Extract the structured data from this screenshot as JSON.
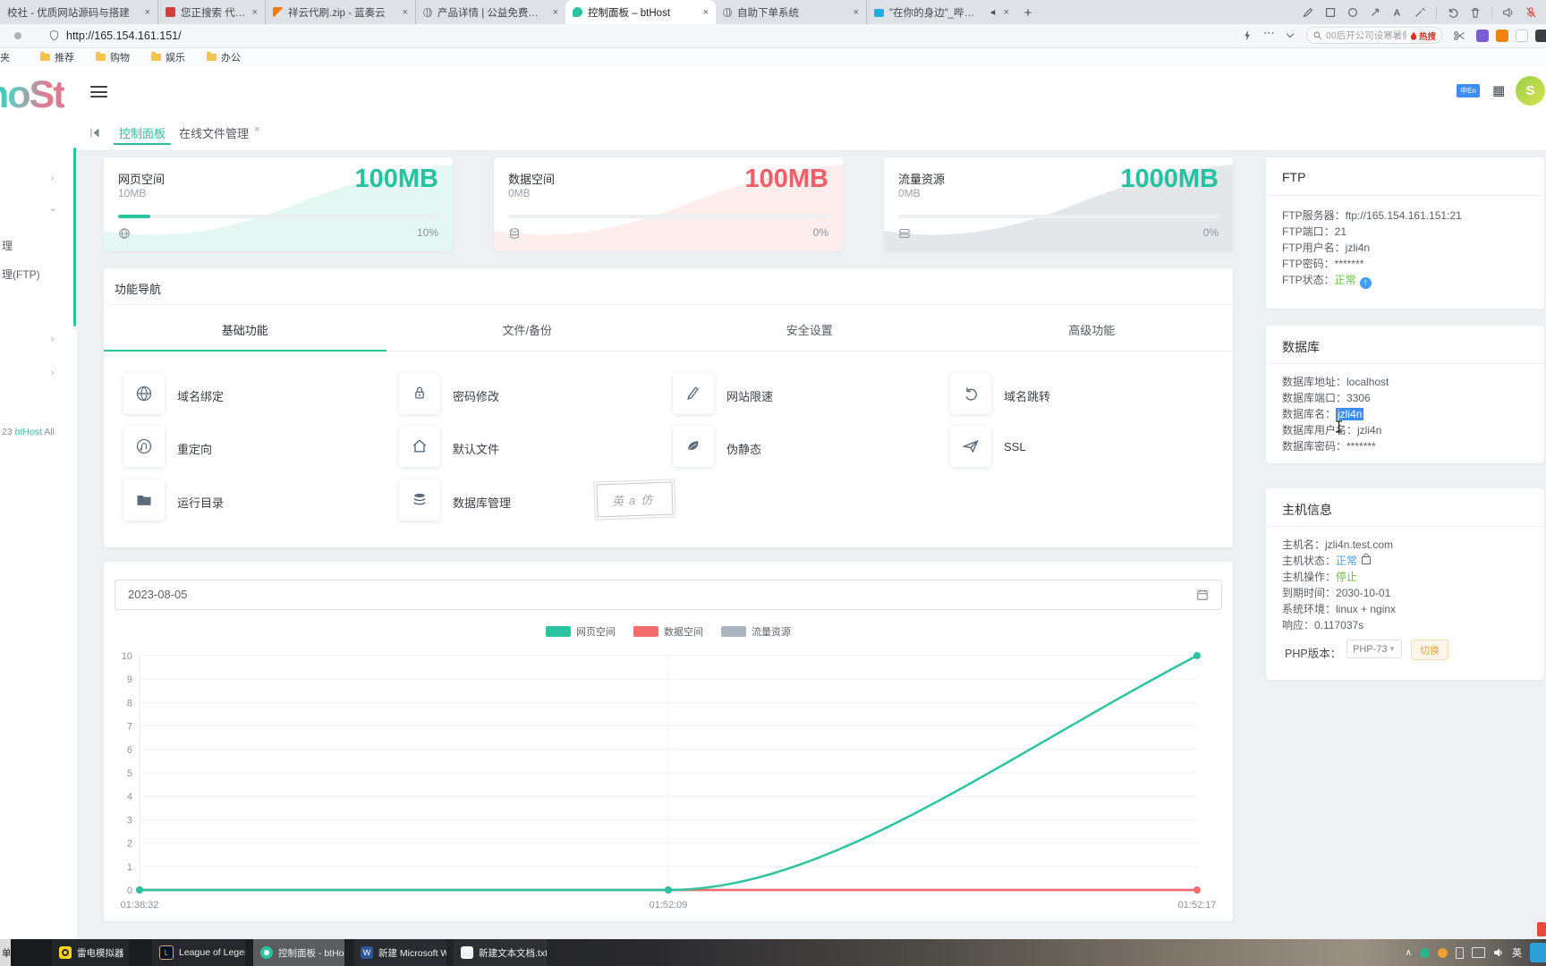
{
  "browser": {
    "tabs": [
      {
        "title": "校社 - 优质网站源码与搭建",
        "close": "×"
      },
      {
        "title": "您正搜索 代刷 - 蓝校社",
        "close": "×"
      },
      {
        "title": "祥云代刷.zip - 蓝奏云",
        "close": "×"
      },
      {
        "title": "产品详情 | 公益免费主机互联",
        "close": "×"
      },
      {
        "title": "控制面板 – btHost",
        "close": "×",
        "active": true
      },
      {
        "title": "自助下单系统",
        "close": "×"
      },
      {
        "title": "\"在你的身边\"_哔哩哔哩_bi",
        "close": "×",
        "audio": true
      }
    ],
    "new_tab": "+",
    "url": "http://165.154.161.151/",
    "search_text": "00后开公司设寒暑假",
    "hot_badge": "热搜",
    "bookmarks": [
      "夹",
      "推荐",
      "购物",
      "娱乐",
      "办公"
    ]
  },
  "sidebar": {
    "logo": "hoSt",
    "item_partial_1": "理",
    "item_partial_2": "理(FTP)",
    "footer_prefix": "23 ",
    "footer_brand": "btHost",
    "footer_suffix": " All"
  },
  "header": {
    "lang_badge": "中En",
    "avatar_initial": "S"
  },
  "page_tabs": {
    "tab1": "控制面板",
    "tab2": "在线文件管理",
    "close": "×"
  },
  "stat_cards": [
    {
      "title": "网页空间",
      "used": "10MB",
      "total": "100MB",
      "percent": "10%",
      "progress": 10,
      "accent": "#2bc3a0"
    },
    {
      "title": "数据空间",
      "used": "0MB",
      "total": "100MB",
      "percent": "0%",
      "progress": 0,
      "accent": "#f56c6c"
    },
    {
      "title": "流量资源",
      "used": "0MB",
      "total": "1000MB",
      "percent": "0%",
      "progress": 0,
      "accent": "#2bc3a0"
    }
  ],
  "function_nav": {
    "title": "功能导航",
    "tabs": [
      "基础功能",
      "文件/备份",
      "安全设置",
      "高级功能"
    ],
    "items": [
      "域名绑定",
      "密码修改",
      "网站限速",
      "域名跳转",
      "重定向",
      "默认文件",
      "伪静态",
      "SSL",
      "运行目录",
      "数据库管理"
    ],
    "watermark": "英a仿"
  },
  "ftp_panel": {
    "title": "FTP",
    "rows": [
      {
        "label": "FTP服务器：",
        "value": "ftp://165.154.161.151:21"
      },
      {
        "label": "FTP端口：",
        "value": "21"
      },
      {
        "label": "FTP用户名：",
        "value": "jzli4n"
      },
      {
        "label": "FTP密码：",
        "value": "*******"
      },
      {
        "label": "FTP状态：",
        "value": "正常"
      }
    ]
  },
  "db_panel": {
    "title": "数据库",
    "rows": [
      {
        "label": "数据库地址：",
        "value": "localhost"
      },
      {
        "label": "数据库端口：",
        "value": "3306"
      },
      {
        "label": "数据库名：",
        "value": "jzli4n"
      },
      {
        "label": "数据库用户名：",
        "value": "jzli4n"
      },
      {
        "label": "数据库密码：",
        "value": "*******"
      }
    ]
  },
  "host_panel": {
    "title": "主机信息",
    "rows": [
      {
        "label": "主机名：",
        "value": "jzli4n.test.com"
      },
      {
        "label": "主机状态：",
        "value": "正常"
      },
      {
        "label": "主机操作：",
        "value": "停止"
      },
      {
        "label": "到期时间：",
        "value": "2030-10-01"
      },
      {
        "label": "系统环境：",
        "value": "linux + nginx"
      },
      {
        "label": "响应：",
        "value": "0.117037s"
      }
    ],
    "php_label": "PHP版本：",
    "php_value": "PHP-73",
    "switch_label": "切换"
  },
  "chart_card": {
    "date": "2023-08-05"
  },
  "chart_data": {
    "type": "line",
    "x": [
      "01:38:32",
      "01:52:09",
      "01:52:17"
    ],
    "series": [
      {
        "name": "网页空间",
        "color": "#2bc3a0",
        "values": [
          0,
          0,
          10
        ]
      },
      {
        "name": "数据空间",
        "color": "#f56c6c",
        "values": [
          0,
          0,
          0
        ]
      },
      {
        "name": "流量资源",
        "color": "#aab4be",
        "values": [
          0,
          0,
          0
        ]
      }
    ],
    "ylim": [
      0,
      10
    ],
    "ytick_step": 1,
    "grid": true,
    "legend_position": "top"
  },
  "taskbar": {
    "partial": "单",
    "items": [
      "雷电模拟器",
      "League of Legends",
      "控制面板 - btHost...",
      "新建 Microsoft W...",
      "新建文本文档.txt -..."
    ],
    "tray_ime": "英"
  }
}
